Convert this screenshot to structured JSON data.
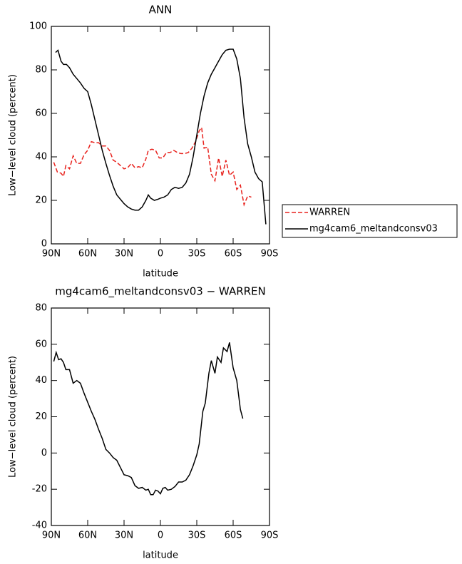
{
  "chart_data": [
    {
      "type": "line",
      "title": "ANN",
      "x_label": "latitude",
      "y_label": "Low−level cloud (percent)",
      "xlim": [
        90,
        -90
      ],
      "xticks": [
        {
          "value": 90,
          "label": "90N"
        },
        {
          "value": 60,
          "label": "60N"
        },
        {
          "value": 30,
          "label": "30N"
        },
        0,
        {
          "value": -30,
          "label": "30S"
        },
        {
          "value": -60,
          "label": "60S"
        },
        {
          "value": -90,
          "label": "90S"
        }
      ],
      "ylim": [
        0,
        100
      ],
      "yticks": [
        0,
        20,
        40,
        60,
        80,
        100
      ],
      "legend": "right",
      "series": [
        {
          "name": "WARREN",
          "color": "#e8221d",
          "dashed": true,
          "x": [
            88,
            85,
            82,
            80,
            78,
            75,
            72,
            69,
            66,
            63,
            60,
            57,
            54,
            51,
            48,
            45,
            42,
            39,
            36,
            33,
            30,
            27,
            24,
            21,
            18,
            15,
            12,
            10,
            7,
            4,
            1,
            -2,
            -5,
            -8,
            -11,
            -14,
            -17,
            -20,
            -23,
            -26,
            -29,
            -32,
            -34,
            -36,
            -39,
            -42,
            -45,
            -48,
            -51,
            -54,
            -57,
            -60,
            -63,
            -66,
            -69,
            -72,
            -75
          ],
          "values": [
            37.5,
            33,
            32.5,
            31,
            36,
            34.5,
            40.5,
            37,
            37,
            41,
            43,
            47,
            46.5,
            46.5,
            45,
            45,
            43,
            38.5,
            37.5,
            36,
            34.5,
            35,
            37,
            35,
            35.5,
            35,
            39,
            43,
            43.5,
            43,
            39.5,
            39.5,
            42,
            42,
            43,
            42,
            41.5,
            41.5,
            42,
            44,
            47,
            52,
            53.5,
            44,
            44.5,
            32,
            29,
            39.5,
            31,
            38.5,
            31.5,
            33,
            25,
            27,
            18,
            22,
            21.5
          ]
        },
        {
          "name": "mg4cam6_meltandconsv03",
          "color": "#000000",
          "dashed": false,
          "x": [
            86.5,
            84.5,
            82,
            80,
            77.5,
            75,
            72,
            69,
            66,
            63,
            60,
            57,
            54,
            51,
            48,
            45,
            42,
            39,
            36,
            33,
            30,
            27,
            24,
            21,
            18,
            15,
            12,
            10,
            8,
            5,
            2,
            0,
            -3,
            -6,
            -9,
            -12,
            -15,
            -18,
            -21,
            -24,
            -27,
            -30,
            -33,
            -36,
            -39,
            -42,
            -45,
            -48,
            -51,
            -54,
            -57,
            -60,
            -63,
            -66,
            -69,
            -72,
            -75,
            -78,
            -81,
            -84,
            -87
          ],
          "values": [
            88,
            89,
            84,
            82.5,
            82.5,
            81,
            78,
            76,
            74,
            71.5,
            70,
            64,
            57,
            50,
            43,
            37,
            31.5,
            26.5,
            22.5,
            20.5,
            18.5,
            17,
            16,
            15.5,
            15.5,
            17,
            20,
            22.5,
            21,
            20,
            20.5,
            21,
            21.5,
            22.5,
            25,
            26,
            25.5,
            26,
            28,
            32,
            40,
            50,
            60,
            68,
            74,
            78,
            81,
            84,
            87,
            89,
            89.5,
            89.5,
            85,
            76,
            58,
            46,
            40,
            33,
            30,
            28.5,
            9
          ]
        }
      ]
    },
    {
      "type": "line",
      "title": "mg4cam6_meltandconsv03 − WARREN",
      "x_label": "latitude",
      "y_label": "Low−level cloud (percent)",
      "xlim": [
        90,
        -90
      ],
      "xticks": [
        {
          "value": 90,
          "label": "90N"
        },
        {
          "value": 60,
          "label": "60N"
        },
        {
          "value": 30,
          "label": "30N"
        },
        0,
        {
          "value": -30,
          "label": "30S"
        },
        {
          "value": -60,
          "label": "60S"
        },
        {
          "value": -90,
          "label": "90S"
        }
      ],
      "ylim": [
        -40,
        80
      ],
      "yticks": [
        -40,
        -20,
        0,
        20,
        40,
        60,
        80
      ],
      "series": [
        {
          "color": "#000000",
          "dashed": false,
          "x": [
            88,
            86,
            84,
            82,
            80,
            78,
            75,
            72,
            69,
            66,
            63,
            60,
            57,
            54,
            51,
            48,
            45,
            42,
            39,
            36,
            33,
            30,
            27,
            24,
            21,
            18,
            15,
            12,
            10,
            8,
            6,
            4,
            2,
            0,
            -2,
            -4,
            -6,
            -9,
            -12,
            -15,
            -18,
            -21,
            -24,
            -27,
            -30,
            -32,
            -35,
            -37,
            -40,
            -42,
            -45,
            -47,
            -50,
            -52,
            -55,
            -57,
            -60,
            -63,
            -66,
            -68
          ],
          "values": [
            50.5,
            55.5,
            51.5,
            52,
            50,
            46,
            46,
            38.5,
            40,
            38.5,
            33,
            28,
            23,
            18.5,
            13,
            8,
            2,
            0,
            -2.5,
            -4,
            -8,
            -12,
            -12.5,
            -13.5,
            -18,
            -19.5,
            -19,
            -20.5,
            -20,
            -23,
            -23,
            -20.5,
            -21,
            -22.5,
            -19.5,
            -19,
            -20.5,
            -20,
            -18.5,
            -16,
            -16,
            -15,
            -12,
            -7,
            -1,
            5,
            23,
            27.5,
            44,
            51,
            44,
            53,
            50,
            58,
            56,
            61,
            47,
            40,
            24,
            19
          ]
        }
      ]
    }
  ]
}
